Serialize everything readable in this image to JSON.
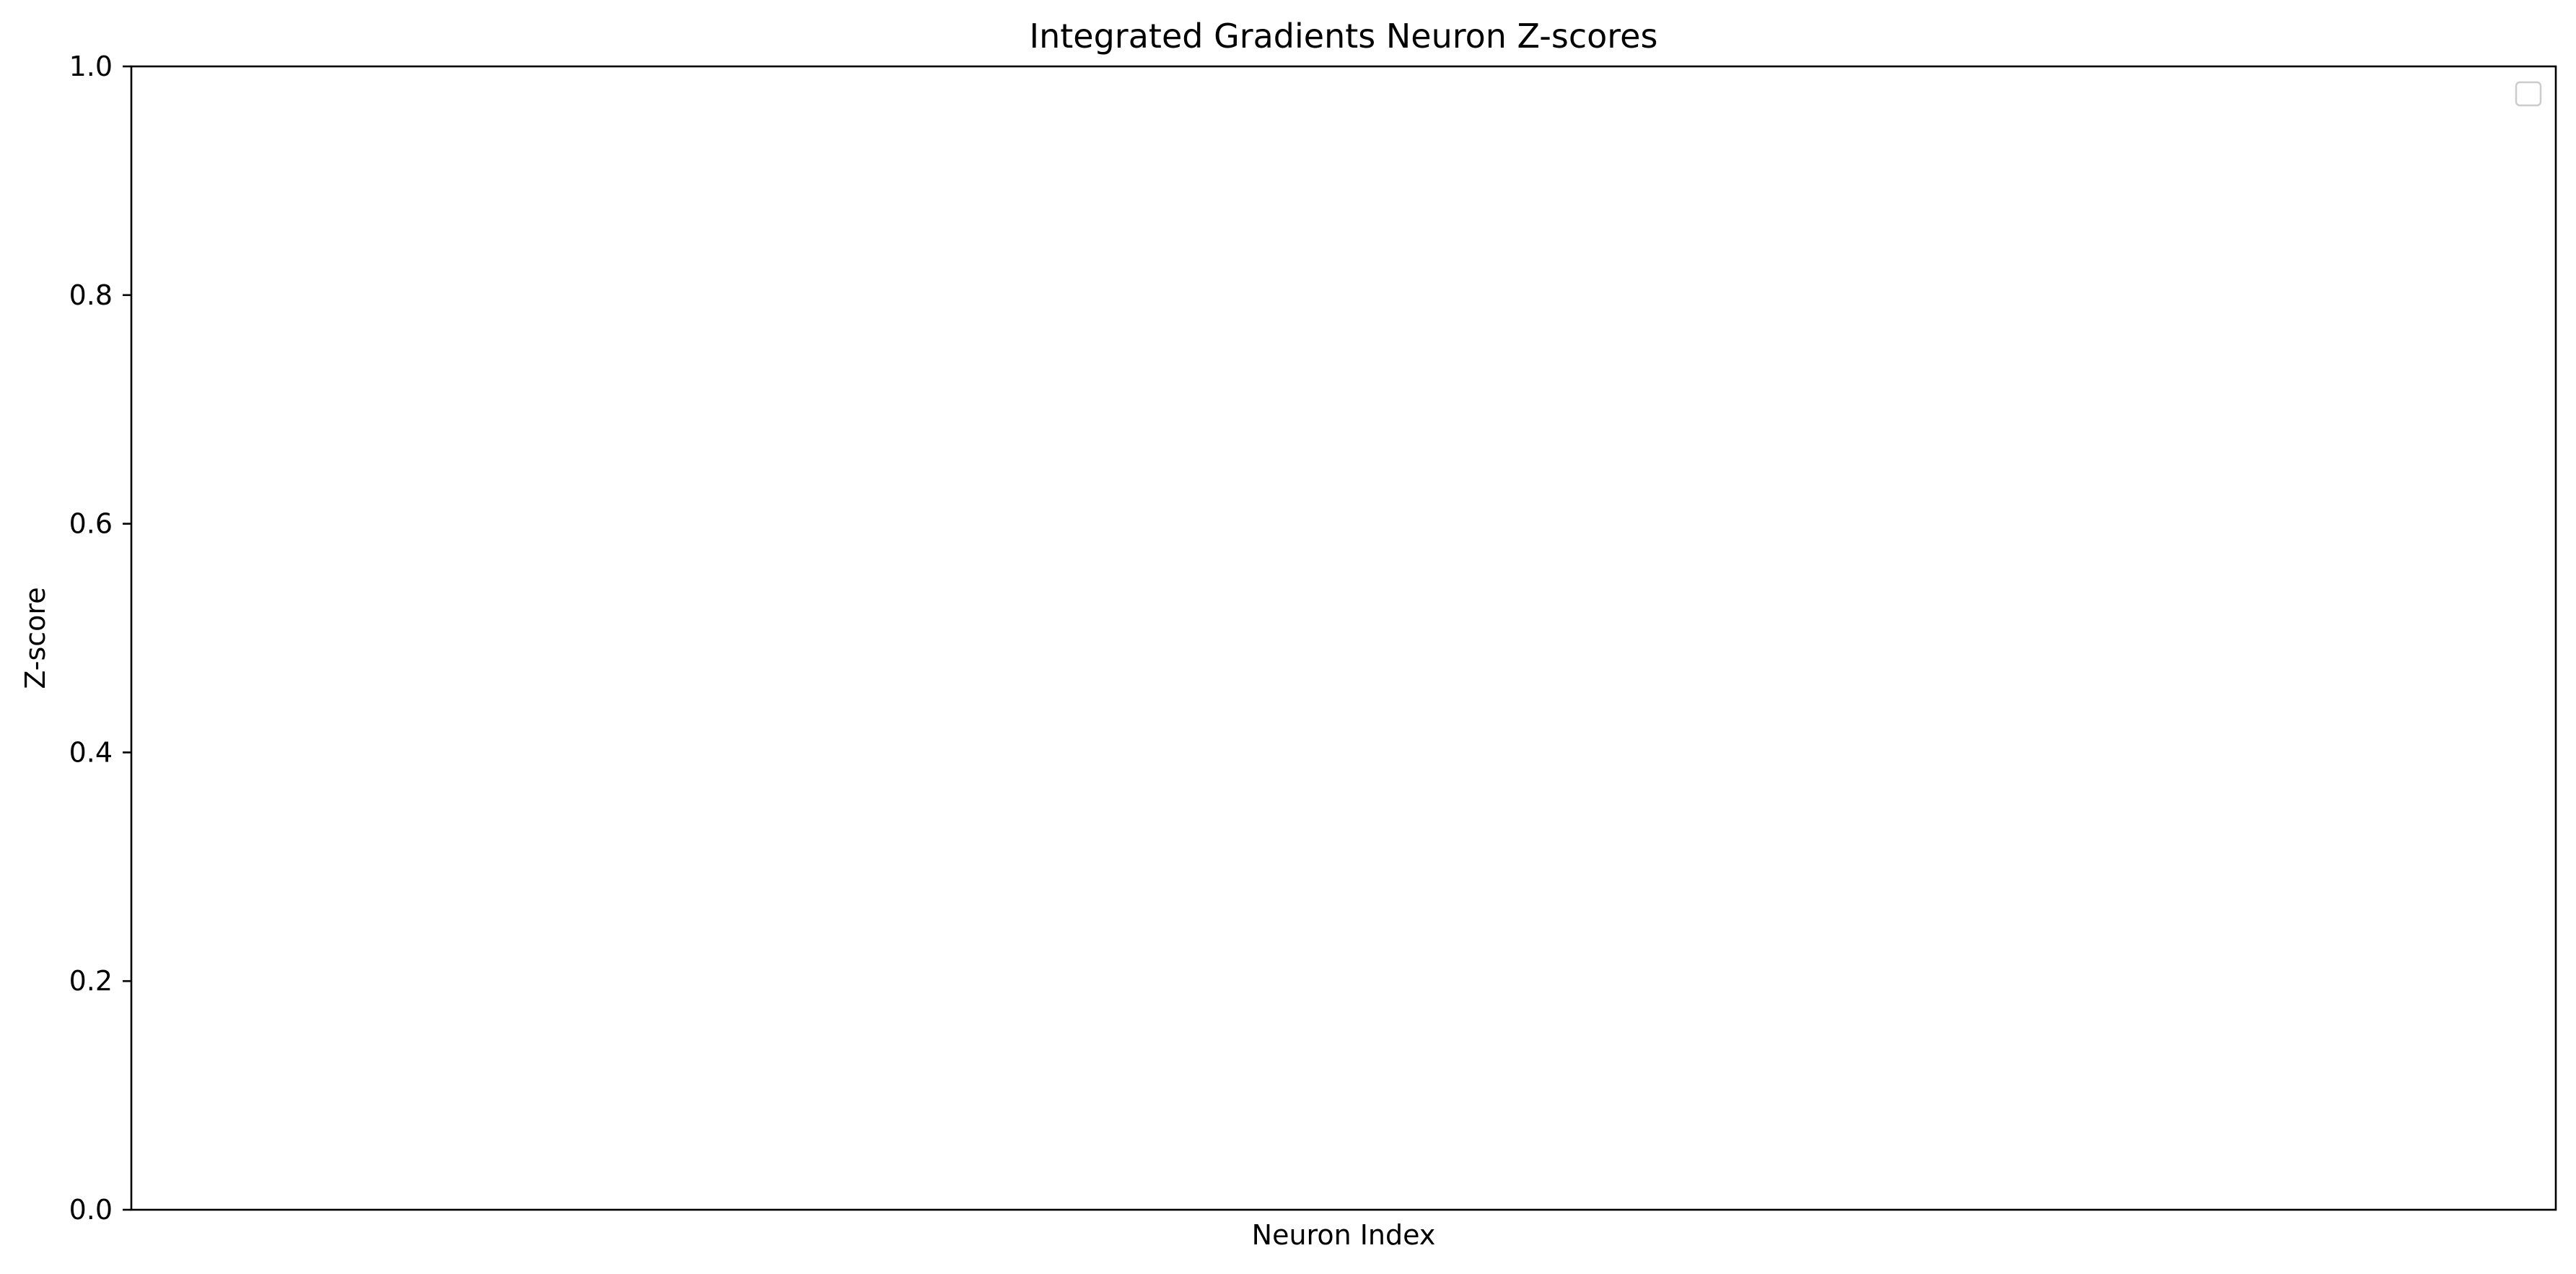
{
  "chart_data": {
    "type": "bar",
    "title": "Integrated Gradients Neuron Z-scores",
    "xlabel": "Neuron Index",
    "ylabel": "Z-score",
    "categories": [],
    "series": [],
    "ylim": [
      0.0,
      1.0
    ],
    "yticks": [
      "0.0",
      "0.2",
      "0.4",
      "0.6",
      "0.8",
      "1.0"
    ],
    "xticks": [],
    "grid": false,
    "legend": {
      "placement": "top-right",
      "entries": []
    }
  }
}
